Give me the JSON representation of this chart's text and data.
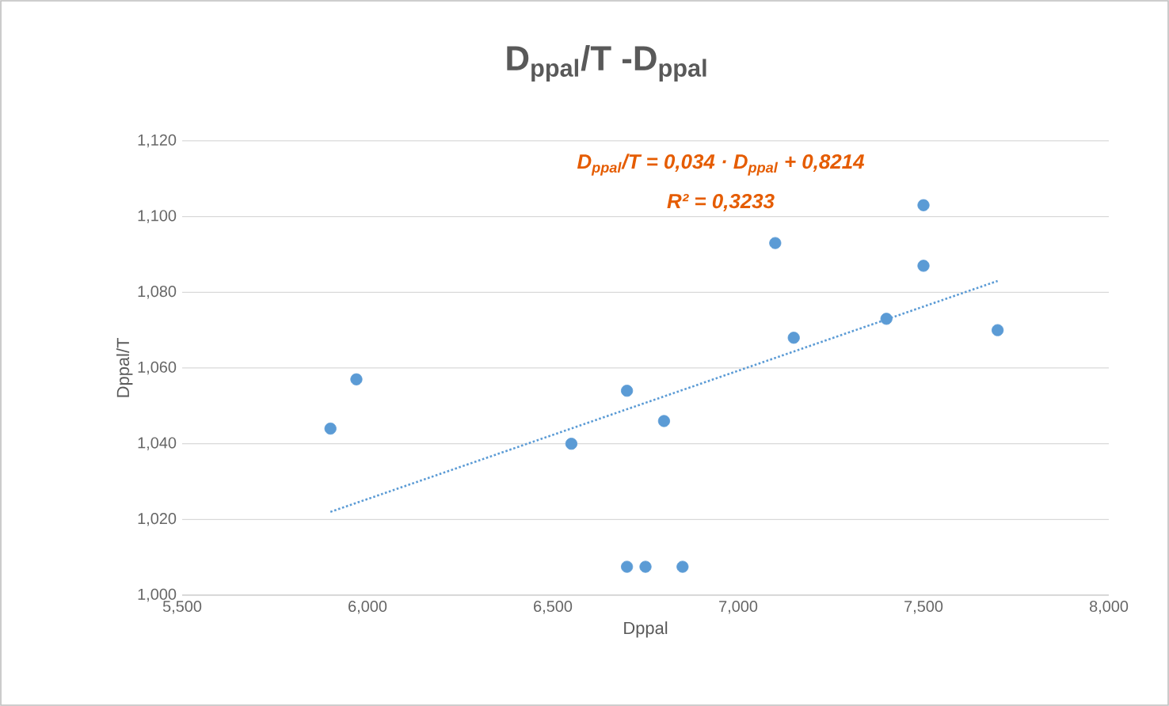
{
  "chart_data": {
    "type": "scatter",
    "title": "D$_{ppal}$/T -D$_{ppal}$",
    "xlabel": "Dppal",
    "ylabel": "Dppal/T",
    "annotations": [
      "D$_{ppal}$/T = 0,034 · D$_{ppal}$ + 0,8214",
      "R² = 0,3233"
    ],
    "series": [
      {
        "color": "#5b9bd5",
        "x": [
          5.9,
          5.97,
          6.55,
          6.7,
          6.8,
          6.7,
          6.75,
          6.85,
          7.1,
          7.15,
          7.4,
          7.5,
          7.5,
          7.7
        ],
        "values": [
          1.044,
          1.057,
          1.04,
          1.054,
          1.046,
          1.0075,
          1.0075,
          1.0075,
          1.093,
          1.068,
          1.073,
          1.103,
          1.087,
          1.07
        ]
      },
      {
        "type": "line",
        "color": "#5b9bd5",
        "line_style": "dotted",
        "marker": "none",
        "x": [
          5.9,
          7.7
        ],
        "values": [
          1.022,
          1.083
        ]
      }
    ],
    "marker": "circle",
    "grid": "y",
    "xlim": [
      5.5,
      8.0
    ],
    "ylim": [
      1.0,
      1.12
    ],
    "xticks": [
      {
        "value": 5.5,
        "label": "5,500"
      },
      {
        "value": 6.0,
        "label": "6,000"
      },
      {
        "value": 6.5,
        "label": "6,500"
      },
      {
        "value": 7.0,
        "label": "7,000"
      },
      {
        "value": 7.5,
        "label": "7,500"
      },
      {
        "value": 8.0,
        "label": "8,000"
      }
    ],
    "yticks": [
      {
        "value": 1.0,
        "label": "1,000"
      },
      {
        "value": 1.02,
        "label": "1,020"
      },
      {
        "value": 1.04,
        "label": "1,040"
      },
      {
        "value": 1.06,
        "label": "1,060"
      },
      {
        "value": 1.08,
        "label": "1,080"
      },
      {
        "value": 1.1,
        "label": "1,100"
      },
      {
        "value": 1.12,
        "label": "1,120"
      }
    ]
  }
}
